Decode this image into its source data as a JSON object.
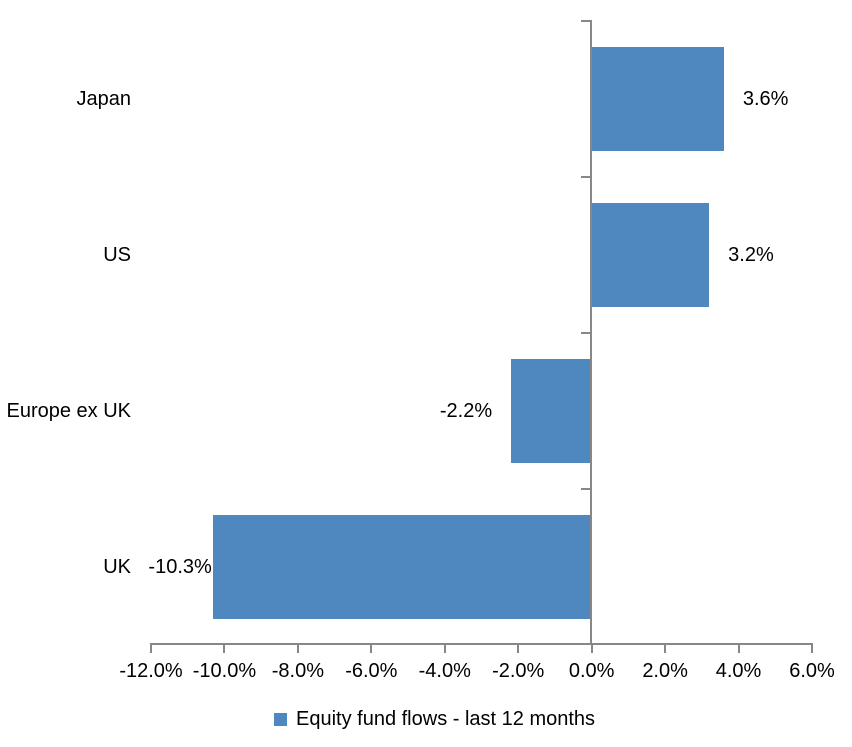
{
  "chart_data": {
    "type": "bar",
    "orientation": "horizontal",
    "title": "",
    "categories": [
      "Japan",
      "US",
      "Europe ex UK",
      "UK"
    ],
    "series": [
      {
        "name": "Equity fund flows - last 12 months",
        "values": [
          3.6,
          3.2,
          -2.2,
          -10.3
        ],
        "color": "#4E88BE"
      }
    ],
    "data_labels": [
      "3.6%",
      "3.2%",
      "-2.2%",
      "-10.3%"
    ],
    "xlim": [
      -12,
      6
    ],
    "x_ticks": [
      {
        "value": -12,
        "label": "-12.0%"
      },
      {
        "value": -10,
        "label": "-10.0%"
      },
      {
        "value": -8,
        "label": "-8.0%"
      },
      {
        "value": -6,
        "label": "-6.0%"
      },
      {
        "value": -4,
        "label": "-4.0%"
      },
      {
        "value": -2,
        "label": "-2.0%"
      },
      {
        "value": 0,
        "label": "0.0%"
      },
      {
        "value": 2,
        "label": "2.0%"
      },
      {
        "value": 4,
        "label": "4.0%"
      },
      {
        "value": 6,
        "label": "6.0%"
      }
    ],
    "grid": false,
    "legend": {
      "position": "bottom",
      "label": "Equity fund flows - last 12 months",
      "marker_color": "#4E88BE"
    },
    "axis_color": "#878787",
    "text_color": "#000000",
    "background": "#FFFFFF"
  }
}
